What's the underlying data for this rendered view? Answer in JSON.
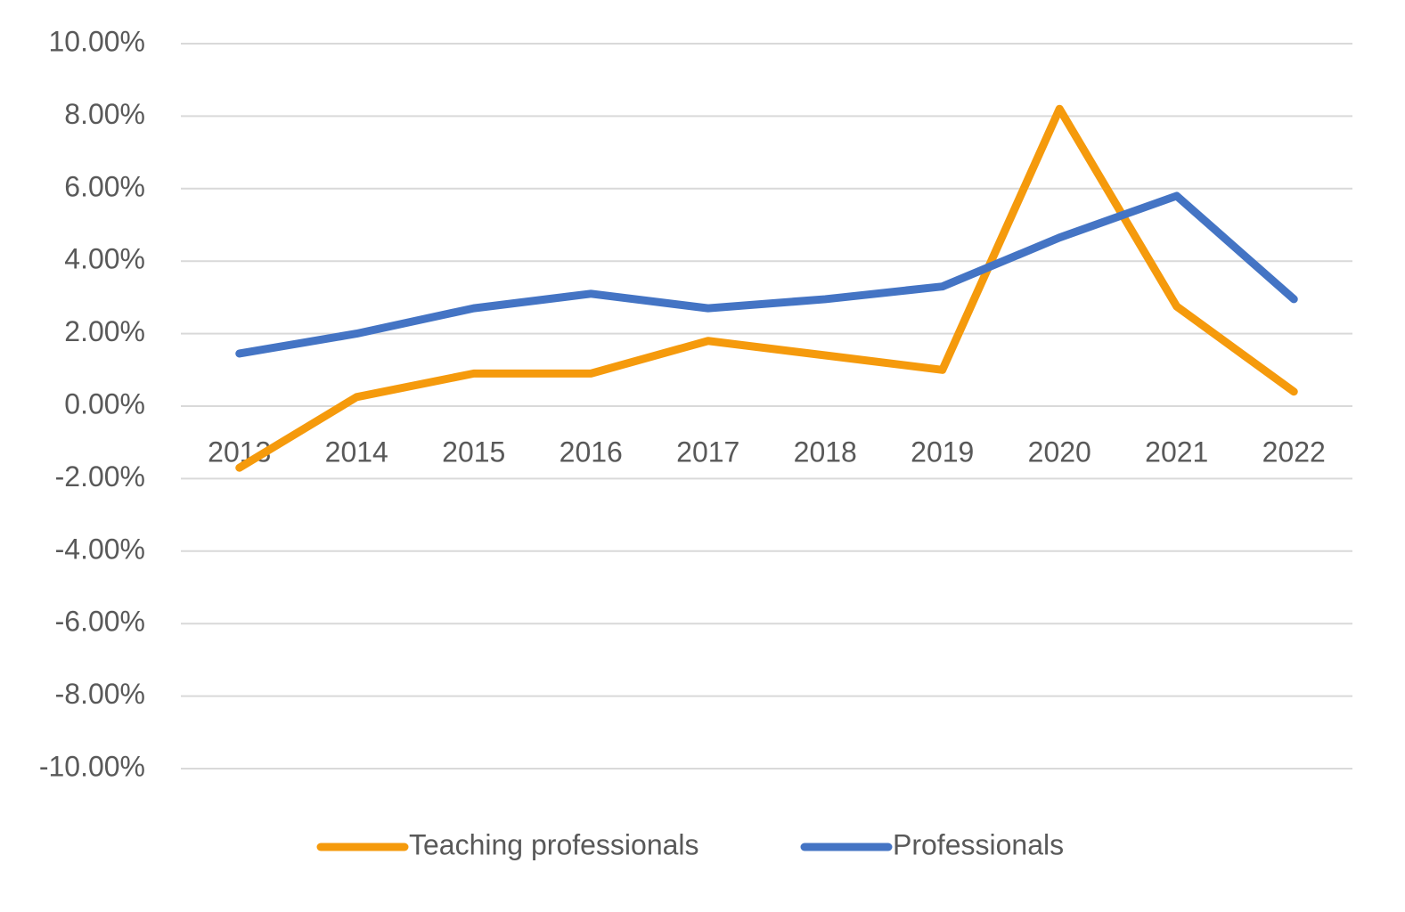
{
  "chart_data": {
    "type": "line",
    "categories": [
      "2013",
      "2014",
      "2015",
      "2016",
      "2017",
      "2018",
      "2019",
      "2020",
      "2021",
      "2022"
    ],
    "series": [
      {
        "name": "Teaching professionals",
        "color": "#f59a0c",
        "values": [
          -1.7,
          0.25,
          0.9,
          0.9,
          1.8,
          1.4,
          1.0,
          8.2,
          2.75,
          0.4
        ]
      },
      {
        "name": "Professionals",
        "color": "#4474c4",
        "values": [
          1.45,
          2.0,
          2.7,
          3.1,
          2.7,
          2.95,
          3.3,
          4.65,
          5.8,
          2.95
        ]
      }
    ],
    "ylim": [
      -10,
      10
    ],
    "yticks": [
      {
        "value": -10,
        "label": "-10.00%"
      },
      {
        "value": -8,
        "label": "-8.00%"
      },
      {
        "value": -6,
        "label": "-6.00%"
      },
      {
        "value": -4,
        "label": "-4.00%"
      },
      {
        "value": -2,
        "label": "-2.00%"
      },
      {
        "value": 0,
        "label": "0.00%"
      },
      {
        "value": 2,
        "label": "2.00%"
      },
      {
        "value": 4,
        "label": "4.00%"
      },
      {
        "value": 6,
        "label": "6.00%"
      },
      {
        "value": 8,
        "label": "8.00%"
      },
      {
        "value": 10,
        "label": "10.00%"
      }
    ],
    "grid": true,
    "legend": "bottom"
  }
}
